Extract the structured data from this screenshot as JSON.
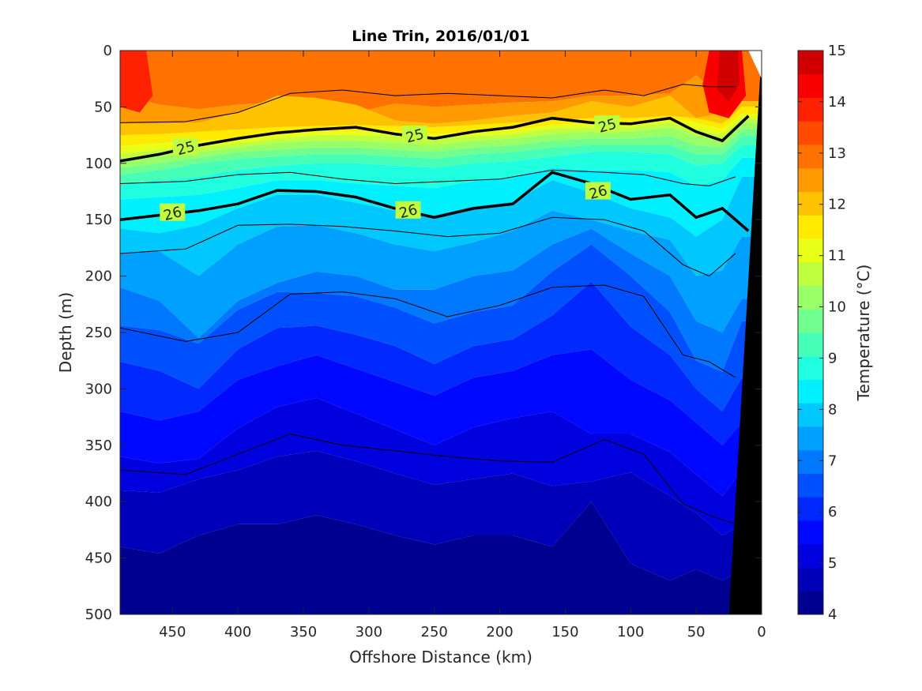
{
  "chart_data": {
    "type": "heatmap",
    "subtype": "filled-contour-section",
    "title": "Line Trin, 2016/01/01",
    "xlabel": "Offshore Distance (km)",
    "ylabel": "Depth (m)",
    "colorbar_label": "Temperature (°C)",
    "x_axis": {
      "lim": [
        490,
        0
      ],
      "reversed": true,
      "ticks": [
        450,
        400,
        350,
        300,
        250,
        200,
        150,
        100,
        50,
        0
      ]
    },
    "y_axis": {
      "lim": [
        0,
        500
      ],
      "reversed": true,
      "ticks": [
        0,
        50,
        100,
        150,
        200,
        250,
        300,
        350,
        400,
        450,
        500
      ]
    },
    "colorbar": {
      "range": [
        4,
        15
      ],
      "ticks": [
        4,
        5,
        6,
        7,
        8,
        9,
        10,
        11,
        12,
        13,
        14,
        15
      ],
      "level_step": 0.5,
      "colors": [
        "#000090",
        "#0000b8",
        "#0000df",
        "#0008ff",
        "#0028ff",
        "#0050ff",
        "#0078ff",
        "#00a0ff",
        "#00c8ff",
        "#00f0ff",
        "#20ffdf",
        "#48ffb7",
        "#70ff8f",
        "#98ff67",
        "#c0ff3f",
        "#e8ff17",
        "#ffea00",
        "#ffc200",
        "#ff9a00",
        "#ff7200",
        "#ff4a00",
        "#ff2200",
        "#f90000",
        "#d10000"
      ]
    },
    "sections": {
      "x": [
        490,
        460,
        430,
        400,
        370,
        340,
        310,
        280,
        250,
        220,
        190,
        160,
        130,
        100,
        70,
        50,
        30,
        15
      ],
      "isotherms": [
        {
          "temp": 13.5,
          "depth": [
            40,
            48,
            52,
            48,
            46,
            50,
            55,
            47,
            50,
            48,
            46,
            45,
            40,
            40,
            38,
            22,
            40,
            45
          ]
        },
        {
          "temp": 13,
          "depth": [
            65,
            65,
            64,
            55,
            40,
            42,
            48,
            62,
            65,
            62,
            58,
            55,
            45,
            50,
            40,
            60,
            55,
            45
          ]
        },
        {
          "temp": 12.5,
          "depth": [
            75,
            74,
            72,
            70,
            68,
            67,
            66,
            67,
            68,
            66,
            64,
            62,
            60,
            60,
            58,
            60,
            65,
            50
          ]
        },
        {
          "temp": 12,
          "depth": [
            85,
            82,
            80,
            78,
            75,
            72,
            72,
            72,
            74,
            72,
            70,
            66,
            64,
            64,
            60,
            64,
            70,
            56
          ]
        },
        {
          "temp": 11.5,
          "depth": [
            92,
            88,
            86,
            82,
            78,
            75,
            75,
            76,
            78,
            76,
            74,
            69,
            68,
            68,
            64,
            70,
            75,
            60
          ]
        },
        {
          "temp": 11,
          "depth": [
            98,
            94,
            90,
            86,
            82,
            80,
            80,
            82,
            84,
            80,
            78,
            74,
            72,
            72,
            68,
            76,
            80,
            64
          ]
        },
        {
          "temp": 10.5,
          "depth": [
            104,
            100,
            95,
            90,
            88,
            86,
            86,
            88,
            90,
            86,
            84,
            80,
            78,
            78,
            76,
            84,
            86,
            70
          ]
        },
        {
          "temp": 10,
          "depth": [
            110,
            106,
            100,
            96,
            94,
            92,
            92,
            94,
            96,
            92,
            90,
            86,
            84,
            84,
            84,
            92,
            92,
            76
          ]
        },
        {
          "temp": 9.5,
          "depth": [
            118,
            115,
            112,
            106,
            102,
            100,
            100,
            102,
            104,
            100,
            98,
            94,
            90,
            90,
            92,
            102,
            100,
            84
          ]
        },
        {
          "temp": 9,
          "depth": [
            132,
            130,
            128,
            122,
            115,
            115,
            118,
            120,
            122,
            116,
            112,
            104,
            106,
            106,
            108,
            120,
            115,
            95
          ]
        },
        {
          "temp": 8.5,
          "depth": [
            158,
            162,
            155,
            140,
            128,
            128,
            135,
            142,
            146,
            138,
            134,
            115,
            126,
            140,
            148,
            165,
            150,
            112
          ]
        },
        {
          "temp": 8,
          "depth": [
            180,
            178,
            200,
            172,
            156,
            155,
            162,
            172,
            178,
            170,
            160,
            142,
            150,
            160,
            168,
            200,
            195,
            165
          ]
        },
        {
          "temp": 7.5,
          "depth": [
            210,
            222,
            255,
            222,
            206,
            196,
            200,
            212,
            212,
            200,
            195,
            172,
            158,
            180,
            200,
            240,
            250,
            220
          ]
        },
        {
          "temp": 7,
          "depth": [
            244,
            248,
            260,
            230,
            214,
            215,
            218,
            228,
            242,
            232,
            226,
            196,
            172,
            200,
            232,
            275,
            285,
            240
          ]
        },
        {
          "temp": 6.5,
          "depth": [
            276,
            284,
            300,
            265,
            246,
            244,
            252,
            262,
            278,
            262,
            256,
            235,
            205,
            245,
            270,
            300,
            320,
            290
          ]
        },
        {
          "temp": 6,
          "depth": [
            320,
            328,
            320,
            292,
            280,
            270,
            282,
            294,
            306,
            290,
            284,
            270,
            265,
            292,
            310,
            330,
            350,
            330
          ]
        },
        {
          "temp": 5.5,
          "depth": [
            360,
            366,
            362,
            335,
            316,
            308,
            322,
            336,
            350,
            334,
            326,
            320,
            340,
            340,
            356,
            376,
            395,
            372
          ]
        },
        {
          "temp": 5,
          "depth": [
            390,
            392,
            380,
            372,
            360,
            355,
            364,
            375,
            385,
            380,
            375,
            386,
            382,
            374,
            395,
            410,
            430,
            420
          ]
        },
        {
          "temp": 4.5,
          "depth": [
            440,
            446,
            430,
            420,
            420,
            412,
            420,
            430,
            438,
            430,
            430,
            440,
            400,
            455,
            470,
            460,
            470,
            460
          ]
        },
        {
          "temp": 4,
          "depth": [
            500,
            500,
            500,
            500,
            500,
            500,
            500,
            500,
            500,
            500,
            500,
            500,
            500,
            500,
            500,
            500,
            500,
            500
          ]
        }
      ],
      "labeled_contours": [
        {
          "label": "25",
          "x": [
            490,
            460,
            430,
            400,
            370,
            340,
            310,
            280,
            250,
            220,
            190,
            160,
            130,
            100,
            70,
            50,
            30,
            10
          ],
          "depth": [
            98,
            92,
            84,
            78,
            73,
            70,
            68,
            74,
            78,
            72,
            68,
            60,
            64,
            65,
            60,
            72,
            80,
            58
          ],
          "label_positions": [
            {
              "x": 440,
              "depth": 86
            },
            {
              "x": 265,
              "depth": 75
            },
            {
              "x": 118,
              "depth": 66
            }
          ]
        },
        {
          "label": "26",
          "x": [
            490,
            460,
            430,
            400,
            370,
            340,
            310,
            280,
            250,
            220,
            190,
            160,
            130,
            100,
            70,
            50,
            30,
            10
          ],
          "depth": [
            150,
            146,
            142,
            136,
            124,
            125,
            130,
            140,
            148,
            140,
            136,
            108,
            118,
            132,
            128,
            148,
            140,
            160
          ],
          "label_positions": [
            {
              "x": 450,
              "depth": 144
            },
            {
              "x": 270,
              "depth": 142
            },
            {
              "x": 125,
              "depth": 125
            }
          ]
        }
      ],
      "thin_contours": [
        {
          "x": [
            490,
            440,
            400,
            360,
            320,
            280,
            240,
            200,
            160,
            120,
            90,
            60,
            40,
            20
          ],
          "depth": [
            64,
            63,
            55,
            38,
            35,
            40,
            38,
            40,
            42,
            35,
            40,
            30,
            32,
            32
          ]
        },
        {
          "x": [
            490,
            440,
            400,
            360,
            320,
            280,
            240,
            200,
            160,
            120,
            90,
            60,
            40,
            20
          ],
          "depth": [
            118,
            116,
            110,
            108,
            114,
            118,
            116,
            114,
            106,
            108,
            110,
            118,
            120,
            112
          ]
        },
        {
          "x": [
            490,
            440,
            400,
            360,
            320,
            280,
            240,
            200,
            160,
            120,
            90,
            60,
            40,
            20
          ],
          "depth": [
            180,
            176,
            155,
            154,
            156,
            160,
            165,
            162,
            148,
            150,
            160,
            190,
            200,
            180
          ]
        },
        {
          "x": [
            490,
            440,
            400,
            360,
            320,
            280,
            240,
            200,
            160,
            120,
            90,
            60,
            40,
            20
          ],
          "depth": [
            246,
            258,
            250,
            216,
            214,
            220,
            236,
            226,
            210,
            208,
            218,
            270,
            276,
            290
          ]
        },
        {
          "x": [
            490,
            440,
            400,
            360,
            320,
            280,
            240,
            200,
            160,
            120,
            90,
            60,
            40,
            20
          ],
          "depth": [
            372,
            376,
            358,
            340,
            350,
            355,
            360,
            364,
            365,
            345,
            358,
            402,
            412,
            420
          ]
        }
      ],
      "seafloor": {
        "x": [
          0,
          0,
          3,
          25
        ],
        "depth": [
          0,
          0,
          0,
          500
        ]
      }
    }
  }
}
